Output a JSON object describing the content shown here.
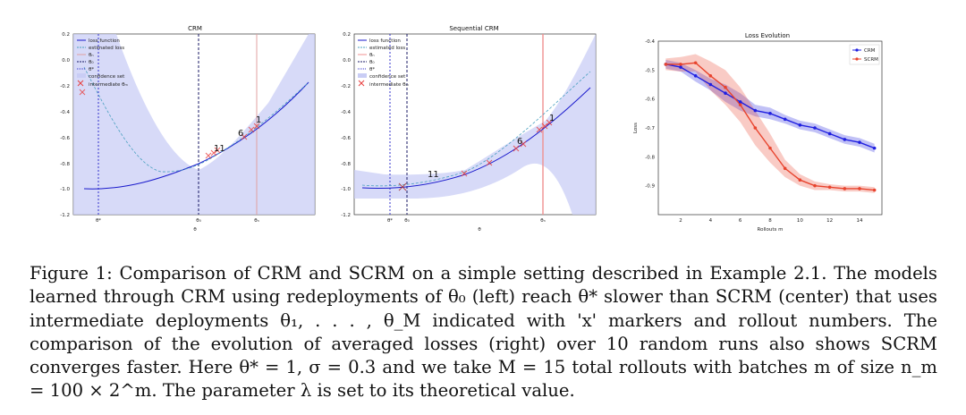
{
  "figure": {
    "caption": "Figure 1: Comparison of CRM and SCRM on a simple setting described in Example 2.1. The models learned through CRM using redeployments of θ₀ (left) reach θ* slower than SCRM (center) that uses intermediate deployments θ₁, . . . , θ_M indicated with 'x' markers and rollout numbers. The comparison of the evolution of averaged losses (right) over 10 random runs also shows SCRM converges faster. Here θ* = 1, σ = 0.3 and we take M = 15 total rollouts with batches m of size n_m = 100 × 2^m. The parameter λ is set to its theoretical value."
  },
  "panel_left": {
    "title": "CRM",
    "xlabel": "θ",
    "ylabel": "",
    "yticks": [
      "0.2",
      "0.0",
      "-0.2",
      "-0.4",
      "-0.6",
      "-0.8",
      "-1.0",
      "-1.2"
    ],
    "xticks": [
      "θ*",
      "θ₀",
      "θₙ"
    ],
    "legend": [
      "loss function",
      "estimated loss",
      "θₙ",
      "θ₀",
      "θ*",
      "confidence set",
      "intermediate θₘ"
    ],
    "annotations": [
      "11",
      "6",
      "1"
    ]
  },
  "panel_center": {
    "title": "Sequential CRM",
    "xlabel": "θ",
    "yticks": [
      "0.2",
      "0.0",
      "-0.2",
      "-0.4",
      "-0.6",
      "-0.8",
      "-1.0",
      "-1.2"
    ],
    "xticks": [
      "θ*",
      "θ₀",
      "θₙ"
    ],
    "legend": [
      "loss function",
      "estimated loss",
      "θₙ",
      "θ₀",
      "θ*",
      "confidence set",
      "intermediate θₘ"
    ],
    "annotations": [
      "11",
      "6",
      "1"
    ]
  },
  "chart_data": {
    "type": "line",
    "title": "Loss Evolution",
    "xlabel": "Rollouts m",
    "ylabel": "Loss",
    "xlim": [
      0.5,
      15.5
    ],
    "ylim": [
      -1.0,
      -0.4
    ],
    "xticks": [
      "2",
      "4",
      "6",
      "8",
      "10",
      "12",
      "14"
    ],
    "yticks": [
      "-0.4",
      "-0.5",
      "-0.6",
      "-0.7",
      "-0.8",
      "-0.9"
    ],
    "legend_position": "top-right",
    "x": [
      1,
      2,
      3,
      4,
      5,
      6,
      7,
      8,
      9,
      10,
      11,
      12,
      13,
      14,
      15
    ],
    "series": [
      {
        "name": "CRM",
        "color": "#1f1fe0",
        "values": [
          -0.48,
          -0.49,
          -0.52,
          -0.55,
          -0.58,
          -0.61,
          -0.64,
          -0.65,
          -0.67,
          -0.69,
          -0.7,
          -0.72,
          -0.74,
          -0.75,
          -0.77
        ],
        "band": [
          0.015,
          0.015,
          0.02,
          0.02,
          0.03,
          0.03,
          0.02,
          0.02,
          0.015,
          0.015,
          0.015,
          0.015,
          0.015,
          0.015,
          0.015
        ]
      },
      {
        "name": "SCRM",
        "color": "#e8442e",
        "values": [
          -0.48,
          -0.48,
          -0.475,
          -0.52,
          -0.56,
          -0.62,
          -0.7,
          -0.77,
          -0.84,
          -0.88,
          -0.9,
          -0.905,
          -0.91,
          -0.91,
          -0.915
        ],
        "band": [
          0.02,
          0.025,
          0.03,
          0.05,
          0.06,
          0.06,
          0.06,
          0.05,
          0.03,
          0.02,
          0.015,
          0.01,
          0.01,
          0.01,
          0.01
        ]
      }
    ]
  }
}
